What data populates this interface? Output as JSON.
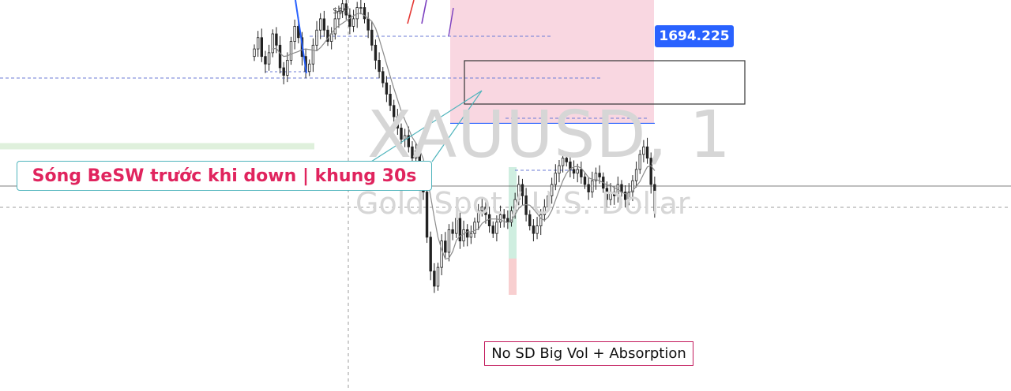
{
  "watermark": {
    "symbol": "XAUUSD, 1",
    "description": "Gold Spot / U.S. Dollar"
  },
  "price_label": "1694.225",
  "annotations": {
    "wave_note": "Sóng BeSW trước khi down | khung 30s",
    "volume_note": "No SD Big Vol + Absorption",
    "sss": "$$$"
  },
  "colors": {
    "accent": "#2962ff",
    "note_text": "#e0245e",
    "note_border_teal": "#4fb4bc",
    "note_border_red": "#c2185b",
    "supply_zone": "#f8d3de",
    "demand_zone": "#dff0dc"
  },
  "chart_data": {
    "type": "candlestick",
    "title": "",
    "symbol": "XAUUSD, 1",
    "description": "Gold Spot / U.S. Dollar",
    "marked_price": 1694.225,
    "grid": false,
    "ylim": [
      1689.0,
      1697.5
    ],
    "candles": {
      "close": [
        1696.2,
        1696.5,
        1696.0,
        1695.8,
        1696.1,
        1696.6,
        1696.3,
        1695.7,
        1695.5,
        1695.9,
        1696.4,
        1696.8,
        1696.5,
        1696.0,
        1695.6,
        1695.8,
        1696.3,
        1696.7,
        1697.0,
        1696.7,
        1696.4,
        1696.6,
        1697.0,
        1697.2,
        1697.4,
        1697.1,
        1696.8,
        1697.0,
        1697.3,
        1697.3,
        1697.0,
        1696.7,
        1696.3,
        1695.9,
        1695.6,
        1695.3,
        1695.0,
        1694.7,
        1694.4,
        1694.1,
        1693.8,
        1693.9,
        1693.6,
        1693.3,
        1693.5,
        1693.0,
        1692.4,
        1691.2,
        1690.3,
        1689.9,
        1690.4,
        1691.1,
        1690.8,
        1691.4,
        1691.3,
        1691.7,
        1691.1,
        1691.4,
        1691.2,
        1691.3,
        1691.6,
        1691.9,
        1692.0,
        1691.8,
        1691.5,
        1691.3,
        1691.6,
        1691.8,
        1691.7,
        1691.6,
        1691.9,
        1692.2,
        1692.6,
        1692.3,
        1691.8,
        1691.5,
        1691.3,
        1691.5,
        1691.8,
        1692.0,
        1692.3,
        1692.6,
        1692.9,
        1693.1,
        1693.3,
        1693.2,
        1693.0,
        1692.9,
        1693.0,
        1692.8,
        1692.6,
        1692.4,
        1692.7,
        1692.9,
        1692.8,
        1692.5,
        1692.2,
        1692.4,
        1692.3,
        1692.6,
        1692.4,
        1692.2,
        1692.4,
        1692.7,
        1693.0,
        1693.4,
        1693.6,
        1693.3,
        1692.6,
        1691.9
      ],
      "open0": 1696.0,
      "volatility_hint": "candles drawn with small wicks around open/close"
    },
    "moving_average_smoothing": 6,
    "levels": [
      {
        "price": 1694.225,
        "label": "1694.225",
        "style": "solid",
        "color": "#2962ff"
      },
      {
        "price": 1692.2,
        "style": "dashed",
        "color": "#9e9e9e"
      }
    ],
    "zones": [
      {
        "kind": "supply",
        "price_range": [
          1694.225,
          1697.5
        ]
      },
      {
        "kind": "demand",
        "price_range": [
          1693.55,
          1693.7
        ]
      },
      {
        "kind": "outlined-box",
        "price_range": [
          1692.9,
          1693.6
        ]
      }
    ]
  }
}
